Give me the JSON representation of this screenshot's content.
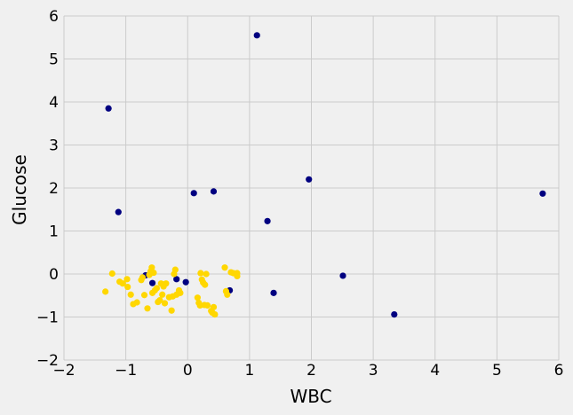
{
  "chart_data": {
    "type": "scatter",
    "title": "",
    "xlabel": "WBC",
    "ylabel": "Glucose",
    "xlim": [
      -2,
      6
    ],
    "ylim": [
      -2,
      6
    ],
    "xticks": [
      -2,
      -1,
      0,
      1,
      2,
      3,
      4,
      5,
      6
    ],
    "yticks": [
      -2,
      -1,
      0,
      1,
      2,
      3,
      4,
      5,
      6
    ],
    "grid": true,
    "legend": "none",
    "series": [
      {
        "color": "#000080",
        "points": [
          [
            1.12,
            5.55
          ],
          [
            -1.28,
            3.85
          ],
          [
            1.96,
            2.2
          ],
          [
            5.74,
            1.87
          ],
          [
            0.1,
            1.88
          ],
          [
            0.42,
            1.92
          ],
          [
            -1.12,
            1.44
          ],
          [
            1.29,
            1.23
          ],
          [
            2.51,
            -0.04
          ],
          [
            1.39,
            -0.44
          ],
          [
            3.34,
            -0.94
          ],
          [
            -0.68,
            -0.03
          ],
          [
            -0.57,
            -0.21
          ],
          [
            -0.18,
            -0.12
          ],
          [
            -0.03,
            -0.19
          ],
          [
            0.68,
            -0.38
          ]
        ]
      },
      {
        "color": "#ffd700",
        "points": [
          [
            -1.33,
            -0.41
          ],
          [
            -1.22,
            0.01
          ],
          [
            -1.1,
            -0.18
          ],
          [
            -1.05,
            -0.22
          ],
          [
            -0.98,
            -0.12
          ],
          [
            -0.97,
            -0.3
          ],
          [
            -0.92,
            -0.48
          ],
          [
            -0.88,
            -0.7
          ],
          [
            -0.82,
            -0.66
          ],
          [
            -0.75,
            -0.14
          ],
          [
            -0.73,
            -0.08
          ],
          [
            -0.7,
            -0.49
          ],
          [
            -0.65,
            -0.8
          ],
          [
            -0.62,
            -0.02
          ],
          [
            -0.6,
            0.06
          ],
          [
            -0.58,
            0.15
          ],
          [
            -0.57,
            -0.44
          ],
          [
            -0.55,
            0.03
          ],
          [
            -0.53,
            -0.38
          ],
          [
            -0.5,
            -0.33
          ],
          [
            -0.48,
            -0.65
          ],
          [
            -0.45,
            -0.61
          ],
          [
            -0.43,
            -0.22
          ],
          [
            -0.41,
            -0.48
          ],
          [
            -0.39,
            -0.29
          ],
          [
            -0.37,
            -0.68
          ],
          [
            -0.35,
            -0.22
          ],
          [
            -0.3,
            -0.54
          ],
          [
            -0.26,
            -0.85
          ],
          [
            -0.24,
            -0.52
          ],
          [
            -0.22,
            0.0
          ],
          [
            -0.2,
            0.1
          ],
          [
            -0.18,
            -0.48
          ],
          [
            -0.14,
            -0.38
          ],
          [
            -0.12,
            -0.44
          ],
          [
            0.16,
            -0.55
          ],
          [
            0.18,
            -0.67
          ],
          [
            0.2,
            -0.73
          ],
          [
            0.21,
            0.02
          ],
          [
            0.23,
            -0.13
          ],
          [
            0.25,
            -0.2
          ],
          [
            0.27,
            -0.72
          ],
          [
            0.28,
            -0.25
          ],
          [
            0.3,
            0.0
          ],
          [
            0.32,
            -0.73
          ],
          [
            0.38,
            -0.86
          ],
          [
            0.4,
            -0.9
          ],
          [
            0.42,
            -0.77
          ],
          [
            0.44,
            -0.94
          ],
          [
            0.6,
            0.15
          ],
          [
            0.62,
            -0.4
          ],
          [
            0.64,
            -0.48
          ],
          [
            0.7,
            0.04
          ],
          [
            0.74,
            0.02
          ],
          [
            0.8,
            -0.05
          ],
          [
            0.8,
            0.02
          ]
        ]
      }
    ]
  }
}
